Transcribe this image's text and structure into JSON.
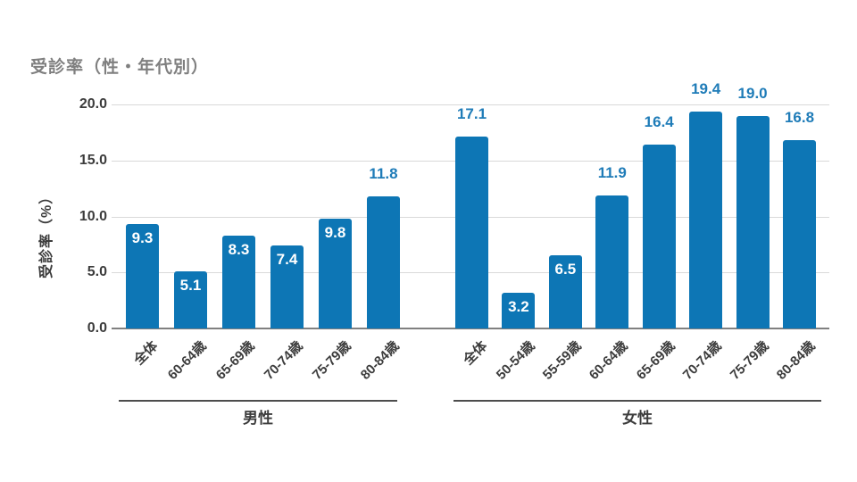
{
  "chart_data": {
    "type": "bar",
    "title": "受診率（性・年代別）",
    "ylabel": "受診率（%）",
    "xlabel": "",
    "ylim": [
      0,
      20
    ],
    "ytick_values": [
      0,
      5,
      10,
      15,
      20
    ],
    "ytick_labels": [
      "0.0",
      "5.0",
      "10.0",
      "15.0",
      "20.0"
    ],
    "grid": true,
    "legend_position": "none",
    "inside_label_threshold": 10,
    "colors": {
      "bar": "#0d76b5",
      "value_label_above": "#1f7cb8",
      "value_label_inside": "#ffffff",
      "gridline": "#d9d9d9",
      "axis_line": "#808080",
      "group_line": "#4d4d4d",
      "title_text": "#7f7f7f",
      "tick_text": "#3c3c3c"
    },
    "groups": [
      {
        "label": "男性",
        "categories": [
          "全体",
          "60-64歳",
          "65-69歳",
          "70-74歳",
          "75-79歳",
          "80-84歳"
        ],
        "values": [
          9.3,
          5.1,
          8.3,
          7.4,
          9.8,
          11.8
        ],
        "value_labels": [
          "9.3",
          "5.1",
          "8.3",
          "7.4",
          "9.8",
          "11.8"
        ]
      },
      {
        "label": "女性",
        "categories": [
          "全体",
          "50-54歳",
          "55-59歳",
          "60-64歳",
          "65-69歳",
          "70-74歳",
          "75-79歳",
          "80-84歳"
        ],
        "values": [
          17.1,
          3.2,
          6.5,
          11.9,
          16.4,
          19.4,
          19.0,
          16.8
        ],
        "value_labels": [
          "17.1",
          "3.2",
          "6.5",
          "11.9",
          "16.4",
          "19.4",
          "19.0",
          "16.8"
        ]
      }
    ]
  }
}
